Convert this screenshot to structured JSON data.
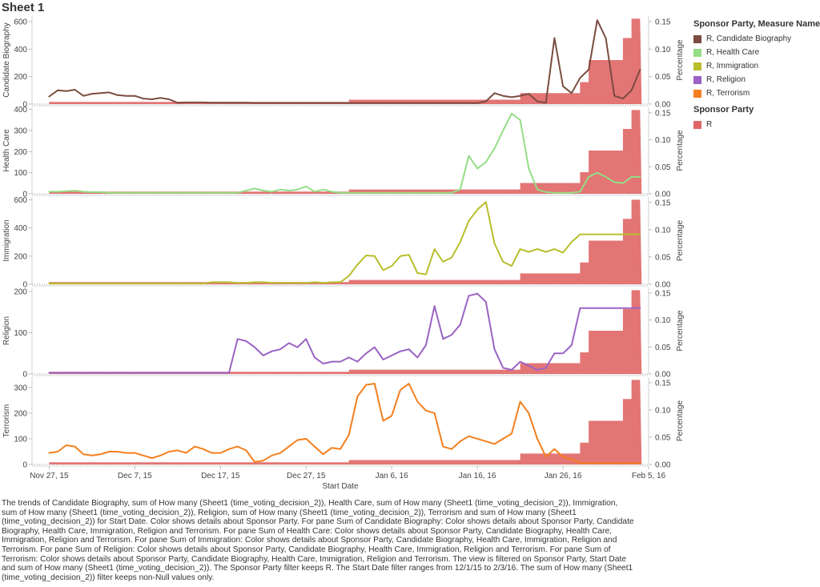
{
  "sheet": {
    "title": "Sheet 1"
  },
  "legend": {
    "title": "Sponsor Party, Measure Names",
    "items": [
      {
        "label": "R, Candidate Biography",
        "color": "#7b4c40"
      },
      {
        "label": "R, Health Care",
        "color": "#95dd86"
      },
      {
        "label": "R, Immigration",
        "color": "#b9be2c"
      },
      {
        "label": "R, Religion",
        "color": "#9b63c4"
      },
      {
        "label": "R, Terrorism",
        "color": "#f47f1e"
      }
    ],
    "title2": "Sponsor Party",
    "items2": [
      {
        "label": "R",
        "color": "#e06666"
      }
    ]
  },
  "caption": "The trends of Candidate Biography, sum of How many (Sheet1 (time_voting_decision_2)), Health Care, sum of How many (Sheet1 (time_voting_decision_2)), Immigration, sum of How many (Sheet1 (time_voting_decision_2)), Religion, sum of How many (Sheet1 (time_voting_decision_2)), Terrorism and sum of How many (Sheet1 (time_voting_decision_2)) for Start Date.  Color shows details about Sponsor Party.  For pane Sum of Candidate Biography:  Color shows details about Sponsor Party, Candidate Biography, Health Care, Immigration, Religion and Terrorism.  For pane Sum of Health Care:  Color shows details about Sponsor Party, Candidate Biography, Health Care, Immigration, Religion and Terrorism.  For pane Sum of Immigration:  Color shows details about Sponsor Party, Candidate Biography, Health Care, Immigration, Religion and Terrorism.  For pane Sum of Religion:  Color shows details about Sponsor Party, Candidate Biography, Health Care, Immigration, Religion and Terrorism.  For pane Sum of Terrorism:  Color shows details about Sponsor Party, Candidate Biography, Health Care, Immigration, Religion and Terrorism. The view is filtered on Sponsor Party, Start Date and sum of How many (Sheet1 (time_voting_decision_2)). The Sponsor Party filter keeps R. The Start Date filter ranges from 12/1/15 to 2/3/16. The sum of How many (Sheet1 (time_voting_decision_2)) filter keeps non-Null values only.",
  "chart_data": {
    "type": "line",
    "xlabel": "Start Date",
    "x_ticks": [
      "Nov 27, 15",
      "Dec 7, 15",
      "Dec 17, 15",
      "Dec 27, 15",
      "Jan 6, 16",
      "Jan 16, 16",
      "Jan 26, 16",
      "Feb 5, 16"
    ],
    "x_range_days": [
      -2,
      70
    ],
    "right_axis": {
      "label": "Percentage",
      "ticks": [
        "0.00",
        "0.05",
        "0.10",
        "0.15"
      ],
      "ylim": [
        0,
        0.16
      ]
    },
    "area_series": {
      "name": "R",
      "color": "#e06666",
      "days": [
        0,
        35,
        55,
        62,
        63,
        66,
        67,
        68,
        69
      ],
      "values": [
        0.004,
        0.008,
        0.02,
        0.04,
        0.08,
        0.08,
        0.12,
        0.155,
        0.155
      ]
    },
    "line_days": [
      0,
      1,
      2,
      3,
      4,
      5,
      6,
      7,
      8,
      9,
      10,
      11,
      12,
      13,
      14,
      15,
      16,
      17,
      18,
      19,
      20,
      21,
      22,
      23,
      24,
      25,
      26,
      27,
      28,
      29,
      30,
      31,
      32,
      33,
      34,
      35,
      36,
      37,
      38,
      39,
      40,
      41,
      42,
      43,
      44,
      45,
      46,
      47,
      48,
      49,
      50,
      51,
      52,
      53,
      54,
      55,
      56,
      57,
      58,
      59,
      60,
      61,
      62,
      63,
      64,
      65,
      66,
      67,
      68,
      69
    ],
    "panes": [
      {
        "ylabel": "Candidate Biography",
        "ylim": [
          0,
          640
        ],
        "ticks": [
          0,
          200,
          400,
          600
        ],
        "color": "#7b4c40",
        "values": [
          55,
          100,
          95,
          105,
          60,
          75,
          80,
          85,
          65,
          60,
          60,
          40,
          35,
          45,
          35,
          10,
          12,
          12,
          12,
          10,
          10,
          10,
          10,
          10,
          8,
          8,
          8,
          8,
          8,
          8,
          8,
          8,
          8,
          8,
          8,
          8,
          8,
          8,
          8,
          8,
          8,
          8,
          8,
          8,
          8,
          8,
          8,
          8,
          8,
          8,
          8,
          20,
          80,
          60,
          50,
          60,
          75,
          20,
          10,
          480,
          130,
          80,
          190,
          250,
          610,
          480,
          60,
          40,
          100,
          250
        ]
      },
      {
        "ylabel": "Health Care",
        "ylim": [
          0,
          410
        ],
        "ticks": [
          0,
          100,
          200,
          300,
          400
        ],
        "color": "#95dd86",
        "values": [
          10,
          10,
          12,
          15,
          10,
          8,
          8,
          5,
          5,
          5,
          5,
          5,
          5,
          5,
          5,
          5,
          5,
          5,
          5,
          5,
          5,
          5,
          5,
          15,
          25,
          15,
          10,
          20,
          15,
          20,
          35,
          10,
          20,
          10,
          5,
          5,
          5,
          5,
          5,
          5,
          5,
          5,
          5,
          5,
          5,
          5,
          5,
          5,
          20,
          180,
          120,
          150,
          215,
          300,
          380,
          350,
          120,
          20,
          8,
          5,
          5,
          5,
          10,
          80,
          100,
          80,
          55,
          50,
          80,
          80
        ]
      },
      {
        "ylabel": "Immigration",
        "ylim": [
          0,
          620
        ],
        "ticks": [
          0,
          200,
          400,
          600
        ],
        "color": "#b9be2c",
        "values": [
          5,
          5,
          5,
          5,
          5,
          5,
          5,
          5,
          5,
          5,
          5,
          5,
          5,
          5,
          5,
          5,
          5,
          5,
          5,
          15,
          15,
          15,
          10,
          10,
          15,
          15,
          10,
          10,
          10,
          10,
          10,
          15,
          10,
          15,
          15,
          60,
          140,
          205,
          200,
          100,
          130,
          200,
          210,
          80,
          70,
          250,
          160,
          190,
          300,
          450,
          530,
          585,
          290,
          160,
          130,
          250,
          230,
          250,
          230,
          250,
          225,
          300,
          355,
          355,
          355,
          355,
          355,
          355,
          355,
          355
        ]
      },
      {
        "ylabel": "Religion",
        "ylim": [
          0,
          210
        ],
        "ticks": [
          0,
          100,
          200
        ],
        "color": "#9b63c4",
        "values": [
          3,
          3,
          3,
          3,
          3,
          3,
          3,
          3,
          3,
          3,
          3,
          3,
          3,
          3,
          3,
          3,
          3,
          3,
          3,
          3,
          3,
          3,
          85,
          80,
          65,
          45,
          55,
          60,
          75,
          65,
          85,
          40,
          25,
          30,
          30,
          40,
          30,
          50,
          65,
          35,
          45,
          55,
          60,
          40,
          70,
          165,
          85,
          95,
          120,
          190,
          195,
          175,
          60,
          15,
          10,
          30,
          20,
          10,
          15,
          50,
          50,
          70,
          160,
          160,
          160,
          160,
          160,
          160,
          160,
          160
        ]
      },
      {
        "ylabel": "Terrorism",
        "ylim": [
          0,
          340
        ],
        "ticks": [
          0,
          100,
          200,
          300
        ],
        "color": "#f47f1e",
        "values": [
          45,
          50,
          75,
          70,
          40,
          35,
          40,
          50,
          50,
          45,
          45,
          35,
          25,
          35,
          50,
          55,
          45,
          70,
          60,
          45,
          45,
          60,
          70,
          55,
          10,
          15,
          35,
          45,
          70,
          95,
          100,
          70,
          40,
          65,
          60,
          115,
          265,
          310,
          315,
          170,
          190,
          290,
          315,
          245,
          210,
          200,
          70,
          60,
          90,
          110,
          100,
          90,
          80,
          100,
          120,
          245,
          200,
          100,
          30,
          60,
          30,
          20,
          5,
          5,
          5,
          5,
          5,
          5,
          5,
          5
        ]
      }
    ]
  }
}
